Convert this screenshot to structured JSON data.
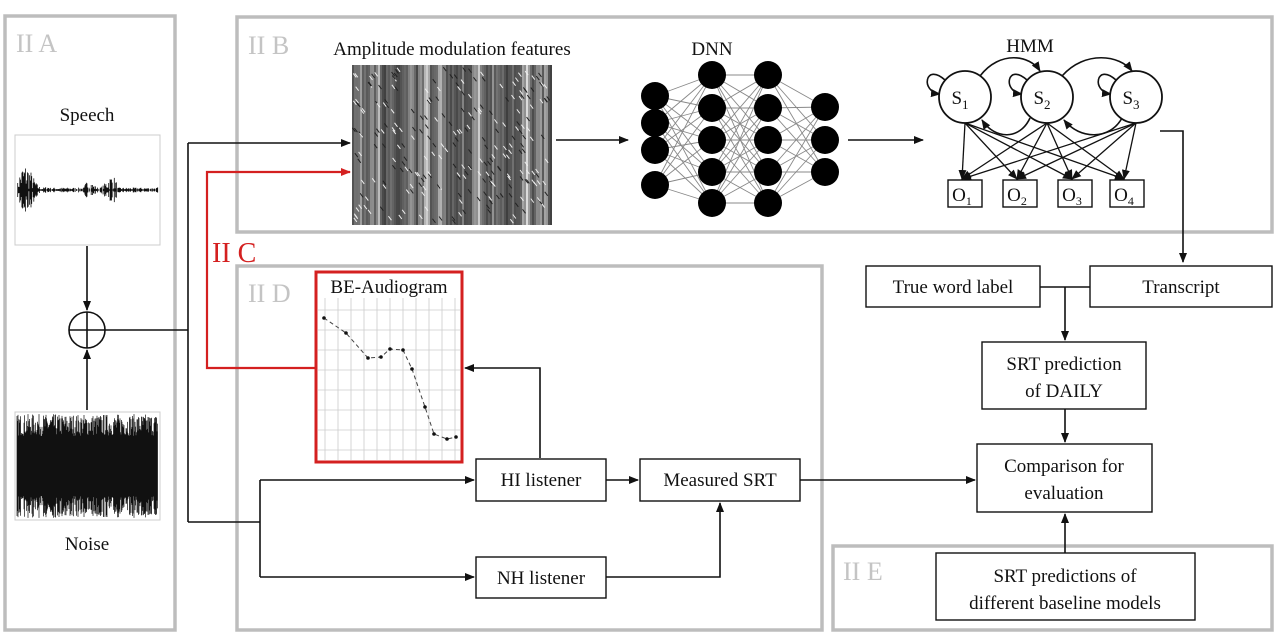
{
  "panels": {
    "a": {
      "label": "II A",
      "speech": "Speech",
      "noise": "Noise"
    },
    "b": {
      "label": "II B",
      "features": "Amplitude modulation features",
      "dnn": "DNN",
      "hmm": "HMM",
      "states": [
        {
          "letter": "S",
          "sub": "1"
        },
        {
          "letter": "S",
          "sub": "2"
        },
        {
          "letter": "S",
          "sub": "3"
        }
      ],
      "observations": [
        {
          "letter": "O",
          "sub": "1"
        },
        {
          "letter": "O",
          "sub": "2"
        },
        {
          "letter": "O",
          "sub": "3"
        },
        {
          "letter": "O",
          "sub": "4"
        }
      ]
    },
    "c": {
      "label": "II C"
    },
    "d": {
      "label": "II D",
      "audiogram": "BE-Audiogram",
      "hi_listener": "HI listener",
      "nh_listener": "NH listener",
      "measured_srt": "Measured SRT"
    },
    "e": {
      "label": "II E",
      "baseline_line1": "SRT predictions of",
      "baseline_line2": "different baseline models"
    }
  },
  "right": {
    "true_word_label": "True word label",
    "transcript": "Transcript",
    "srt_pred_line1": "SRT prediction",
    "srt_pred_line2": "of DAILY",
    "comparison_line1": "Comparison for",
    "comparison_line2": "evaluation"
  },
  "colors": {
    "panel_border": "#bdbdbd",
    "accent_red": "#d42020",
    "ink": "#111111"
  }
}
